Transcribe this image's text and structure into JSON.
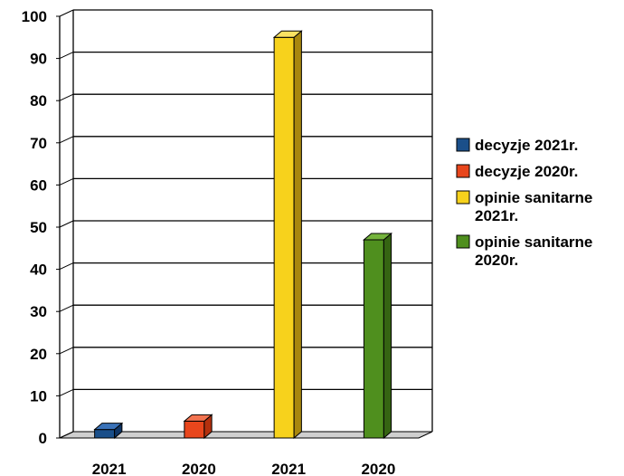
{
  "chart_data": {
    "type": "bar",
    "categories": [
      "2021",
      "2020",
      "2021",
      "2020"
    ],
    "series": [
      {
        "name": "decyzje 2021r.",
        "color": "#1a4f8a",
        "side": "#0f3565",
        "top": "#3a72b8",
        "values": [
          2,
          0,
          0,
          0
        ]
      },
      {
        "name": "decyzje 2020r.",
        "color": "#e8461c",
        "side": "#b3300e",
        "top": "#f27350",
        "values": [
          0,
          4,
          0,
          0
        ]
      },
      {
        "name": "opinie sanitarne 2021r.",
        "color": "#f7d21c",
        "side": "#a8870e",
        "top": "#fae262",
        "values": [
          0,
          0,
          95,
          0
        ]
      },
      {
        "name": "opinie sanitarne 2020r.",
        "color": "#4f8f1e",
        "side": "#356412",
        "top": "#74b33c",
        "values": [
          0,
          0,
          0,
          47
        ]
      }
    ],
    "yticks": [
      "0",
      "10",
      "20",
      "30",
      "40",
      "50",
      "60",
      "70",
      "80",
      "90",
      "100"
    ],
    "ylim": [
      0,
      100
    ],
    "title": "",
    "xlabel": "",
    "ylabel": "",
    "grid": true,
    "legend_position": "right"
  }
}
